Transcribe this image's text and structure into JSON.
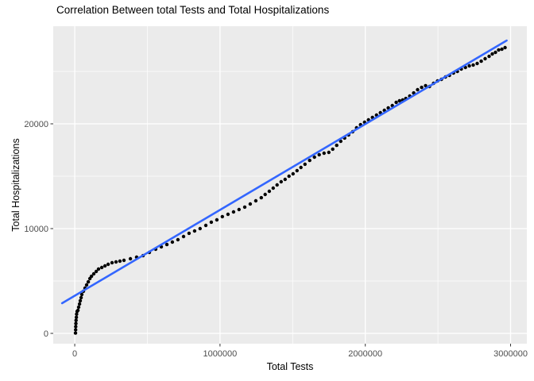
{
  "chart_data": {
    "type": "scatter",
    "title": "Correlation Between total Tests and Total Hospitalizations",
    "xlabel": "Total Tests",
    "ylabel": "Total Hospitalizations",
    "xlim": [
      -148000,
      3112000
    ],
    "ylim": [
      -985,
      29318
    ],
    "x_ticks": [
      {
        "value": 0,
        "label": "0"
      },
      {
        "value": 1000000,
        "label": "1000000"
      },
      {
        "value": 2000000,
        "label": "2000000"
      },
      {
        "value": 3000000,
        "label": "3000000"
      }
    ],
    "y_ticks": [
      {
        "value": 0,
        "label": "0"
      },
      {
        "value": 10000,
        "label": "10000"
      },
      {
        "value": 20000,
        "label": "20000"
      }
    ],
    "x_minor": [
      500000,
      1500000,
      2500000
    ],
    "y_minor": [
      5000,
      15000,
      25000
    ],
    "grid": true,
    "legend": "none",
    "colors": {
      "panel_bg": "#EBEBEB",
      "grid": "#FFFFFF",
      "points": "#000000",
      "smooth_line": "#3366FF",
      "tick_text": "#4D4D4D",
      "tick_mark": "#333333",
      "title_text": "#000000"
    },
    "smooth_line": {
      "method": "lm",
      "x": [
        -87000,
        2973000
      ],
      "y": [
        2880,
        27950
      ]
    },
    "points": [
      [
        5000,
        30
      ],
      [
        6000,
        340
      ],
      [
        7000,
        640
      ],
      [
        8000,
        940
      ],
      [
        9000,
        1240
      ],
      [
        11000,
        1530
      ],
      [
        13000,
        1830
      ],
      [
        16000,
        2100
      ],
      [
        22000,
        2200
      ],
      [
        27000,
        2500
      ],
      [
        33000,
        2800
      ],
      [
        38000,
        3110
      ],
      [
        44000,
        3410
      ],
      [
        49000,
        3710
      ],
      [
        60000,
        4020
      ],
      [
        71000,
        4320
      ],
      [
        82000,
        4620
      ],
      [
        93000,
        4920
      ],
      [
        104000,
        5230
      ],
      [
        115000,
        5450
      ],
      [
        131000,
        5680
      ],
      [
        148000,
        5910
      ],
      [
        164000,
        6140
      ],
      [
        186000,
        6290
      ],
      [
        208000,
        6440
      ],
      [
        230000,
        6590
      ],
      [
        257000,
        6740
      ],
      [
        284000,
        6820
      ],
      [
        311000,
        6890
      ],
      [
        339000,
        6970
      ],
      [
        383000,
        7120
      ],
      [
        426000,
        7270
      ],
      [
        470000,
        7420
      ],
      [
        514000,
        7730
      ],
      [
        557000,
        8030
      ],
      [
        596000,
        8260
      ],
      [
        634000,
        8480
      ],
      [
        672000,
        8710
      ],
      [
        710000,
        8940
      ],
      [
        749000,
        9240
      ],
      [
        787000,
        9550
      ],
      [
        825000,
        9770
      ],
      [
        863000,
        10000
      ],
      [
        902000,
        10300
      ],
      [
        940000,
        10610
      ],
      [
        978000,
        10830
      ],
      [
        1016000,
        11140
      ],
      [
        1055000,
        11360
      ],
      [
        1093000,
        11590
      ],
      [
        1131000,
        11820
      ],
      [
        1170000,
        12050
      ],
      [
        1208000,
        12350
      ],
      [
        1246000,
        12650
      ],
      [
        1284000,
        12950
      ],
      [
        1311000,
        13260
      ],
      [
        1339000,
        13560
      ],
      [
        1366000,
        13860
      ],
      [
        1393000,
        14170
      ],
      [
        1421000,
        14470
      ],
      [
        1448000,
        14700
      ],
      [
        1475000,
        15000
      ],
      [
        1503000,
        15230
      ],
      [
        1530000,
        15530
      ],
      [
        1557000,
        15830
      ],
      [
        1585000,
        16140
      ],
      [
        1617000,
        16510
      ],
      [
        1650000,
        16820
      ],
      [
        1683000,
        17050
      ],
      [
        1716000,
        17200
      ],
      [
        1749000,
        17270
      ],
      [
        1776000,
        17580
      ],
      [
        1803000,
        17950
      ],
      [
        1831000,
        18330
      ],
      [
        1858000,
        18640
      ],
      [
        1885000,
        18940
      ],
      [
        1913000,
        19240
      ],
      [
        1940000,
        19620
      ],
      [
        1967000,
        19920
      ],
      [
        1995000,
        20150
      ],
      [
        2022000,
        20380
      ],
      [
        2049000,
        20610
      ],
      [
        2077000,
        20830
      ],
      [
        2104000,
        21060
      ],
      [
        2131000,
        21290
      ],
      [
        2158000,
        21520
      ],
      [
        2186000,
        21740
      ],
      [
        2213000,
        22050
      ],
      [
        2235000,
        22200
      ],
      [
        2257000,
        22270
      ],
      [
        2279000,
        22420
      ],
      [
        2306000,
        22650
      ],
      [
        2333000,
        22950
      ],
      [
        2360000,
        23260
      ],
      [
        2388000,
        23480
      ],
      [
        2415000,
        23640
      ],
      [
        2442000,
        23560
      ],
      [
        2470000,
        23860
      ],
      [
        2497000,
        24090
      ],
      [
        2524000,
        24240
      ],
      [
        2552000,
        24470
      ],
      [
        2579000,
        24620
      ],
      [
        2607000,
        24850
      ],
      [
        2634000,
        25000
      ],
      [
        2661000,
        25230
      ],
      [
        2689000,
        25380
      ],
      [
        2716000,
        25530
      ],
      [
        2743000,
        25610
      ],
      [
        2770000,
        25760
      ],
      [
        2798000,
        25980
      ],
      [
        2825000,
        26210
      ],
      [
        2852000,
        26440
      ],
      [
        2874000,
        26670
      ],
      [
        2896000,
        26820
      ],
      [
        2918000,
        27050
      ],
      [
        2940000,
        27120
      ],
      [
        2962000,
        27270
      ]
    ]
  }
}
